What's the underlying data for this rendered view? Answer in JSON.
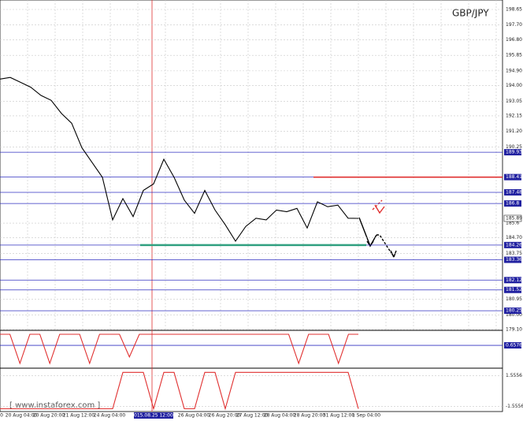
{
  "chart_data": [
    {
      "type": "line",
      "title": "GBP/JPY",
      "color": "#000000",
      "values": [
        194.4,
        194.5,
        194.2,
        193.9,
        193.4,
        193.1,
        192.3,
        191.7,
        190.2,
        189.3,
        188.4,
        185.8,
        187.1,
        186.0,
        187.6,
        188.0,
        189.5,
        188.4,
        187.0,
        186.2,
        187.6,
        186.4,
        185.5,
        184.5,
        185.4,
        185.9,
        185.8,
        186.4,
        186.3,
        186.5,
        185.3,
        186.9,
        186.6,
        186.7,
        185.9,
        185.89
      ],
      "x_labels": [
        "00",
        "20 Aug 04:00",
        "20 Aug 20:00",
        "21 Aug 12:00",
        "24 Aug 04:00",
        "2015.08.25 12:00",
        "26 Aug 04:00",
        "26 Aug 20:00",
        "27 Aug 12:00",
        "28 Aug 04:00",
        "28 Aug 20:00",
        "31 Aug 12:00",
        "1 Sep 04:00"
      ],
      "ylim": [
        179.1,
        198.65
      ],
      "yticks": [
        {
          "value": 198.65,
          "label": "198.65"
        },
        {
          "value": 197.7,
          "label": "197.70"
        },
        {
          "value": 196.8,
          "label": "196.80"
        },
        195.85,
        {
          "value": 194.9,
          "label": "194.90"
        },
        {
          "value": 194.0,
          "label": "194.00"
        },
        193.05,
        192.15,
        {
          "value": 191.2,
          "label": "191.20"
        },
        190.25,
        185.6,
        {
          "value": 184.7,
          "label": "184.70"
        },
        183.75,
        180.95,
        {
          "value": 180.0,
          "label": "180.00"
        },
        {
          "value": 179.1,
          "label": "179.10"
        }
      ],
      "levels": [
        189.93,
        188.41,
        187.48,
        186.8,
        184.26,
        183.36,
        182.12,
        181.52,
        180.25
      ],
      "current": 185.89,
      "resistance": 188.41,
      "support": 184.26,
      "watermark": "[  www.instaforex.com ]"
    },
    {
      "type": "line",
      "color": "#e03030",
      "ylim": [
        0,
        1
      ],
      "level": 0.6576,
      "values": [
        1,
        1,
        0.1,
        1,
        1,
        0.1,
        1,
        1,
        1,
        0.1,
        1,
        1,
        1,
        0.3,
        1,
        1,
        1,
        1,
        1,
        1,
        1,
        1,
        1,
        1,
        1,
        1,
        1,
        1,
        1,
        1,
        0.1,
        1,
        1,
        1,
        0.1,
        1,
        1
      ]
    },
    {
      "type": "line",
      "color": "#e03030",
      "ylim": [
        -2,
        2
      ],
      "levels": [
        1.5556,
        -1.5556
      ],
      "values": [
        -1.8,
        -1.8,
        -1.8,
        -1.8,
        -1.8,
        -1.8,
        -1.8,
        -1.8,
        -1.8,
        -1.8,
        -1.8,
        -1.8,
        1.9,
        1.9,
        1.9,
        -1.8,
        1.9,
        1.9,
        -1.8,
        -1.8,
        1.9,
        1.9,
        -1.8,
        1.9,
        1.9,
        1.9,
        1.9,
        1.9,
        1.9,
        1.9,
        1.9,
        1.9,
        1.9,
        1.9,
        1.9,
        -1.8
      ]
    }
  ]
}
